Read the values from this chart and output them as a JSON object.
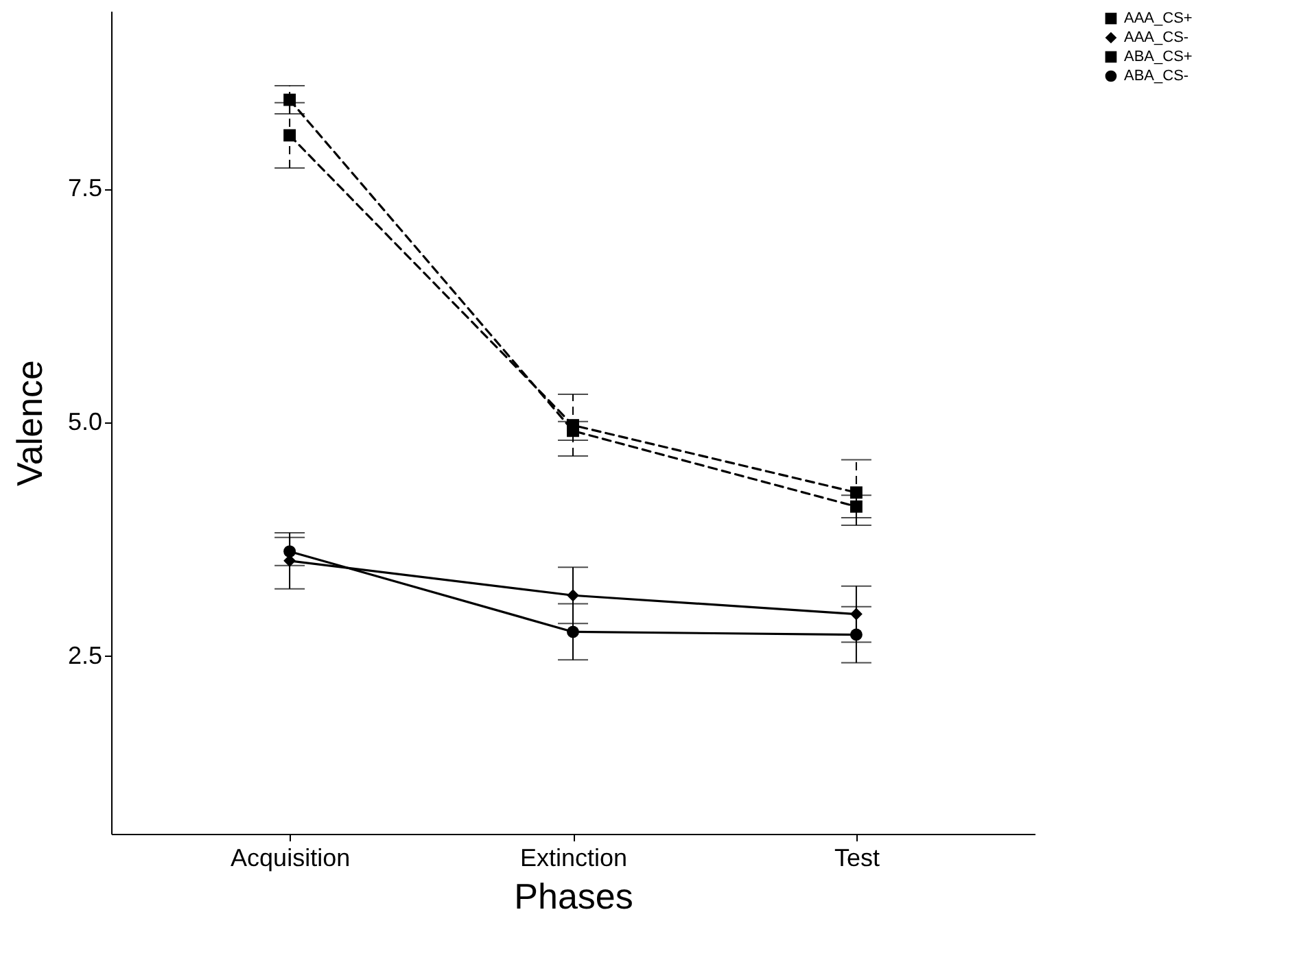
{
  "chart_data": {
    "type": "line",
    "xlabel": "Phases",
    "ylabel": "Valence",
    "categories": [
      "Acquisition",
      "Extinction",
      "Test"
    ],
    "ylim": [
      0.6,
      9.4
    ],
    "yticks": [
      2.5,
      {
        "value": 5,
        "label": "5.0"
      },
      7.5
    ],
    "grid": false,
    "legend": "right",
    "series": [
      {
        "name": "AAA_CS+",
        "color": "#000000",
        "values": [
          8.45,
          4.91,
          4.1
        ],
        "errors": [
          0.15,
          0.1,
          0.12
        ],
        "marker": "square",
        "line_style": "dashed"
      },
      {
        "name": "AAA_CS-",
        "color": "#000000",
        "values": [
          3.52,
          3.15,
          2.95
        ],
        "errors": [
          0.3,
          0.3,
          0.3
        ],
        "marker": "diamond",
        "line_style": "solid"
      },
      {
        "name": "ABA_CS+",
        "color": "#000000",
        "values": [
          8.07,
          4.97,
          4.25
        ],
        "errors": [
          0.35,
          0.33,
          0.35
        ],
        "marker": "square",
        "line_style": "dashed"
      },
      {
        "name": "ABA_CS-",
        "color": "#000000",
        "values": [
          3.62,
          2.76,
          2.73
        ],
        "errors": [
          0.15,
          0.3,
          0.3
        ],
        "marker": "circle",
        "line_style": "solid"
      }
    ]
  }
}
